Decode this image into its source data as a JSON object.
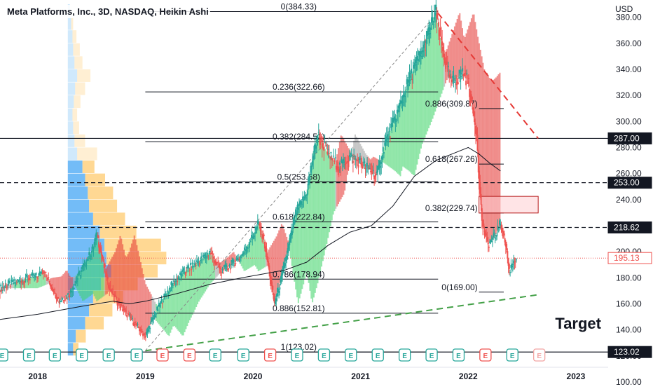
{
  "header": {
    "title": "Meta Platforms, Inc., 3D, NASDAQ, Heikin Ashi",
    "currency": "USD"
  },
  "annotations": {
    "target_label": "Target"
  },
  "colors": {
    "up": "#26a69a",
    "down": "#ef5350",
    "ribbon_up": "#3fd46a",
    "ribbon_down": "#e53935",
    "ribbon_neutral": "#9e9e9e",
    "ma_line": "#131722",
    "fib_line": "#131722",
    "red_dash": "#e53935",
    "green_dash": "#43a047",
    "vp_blue": "#64b5f6",
    "vp_orange": "#ffd180",
    "earnings_green": "#26a69a",
    "earnings_red": "#ef5350",
    "current_price": "#ef5350"
  },
  "chart_data": {
    "type": "candlestick",
    "title": "Meta Platforms, Inc., 3D, NASDAQ, Heikin Ashi",
    "y_axis": {
      "unit": "USD",
      "ylim": [
        100,
        390
      ],
      "ticks": [
        "100.00",
        "120.00",
        "140.00",
        "160.00",
        "180.00",
        "200.00",
        "220.00",
        "240.00",
        "260.00",
        "280.00",
        "300.00",
        "320.00",
        "340.00",
        "360.00",
        "380.00"
      ]
    },
    "x_axis": {
      "xlim": [
        2017.65,
        2023.3
      ],
      "ticks": [
        {
          "label": "2018",
          "x": 2018.0
        },
        {
          "label": "2019",
          "x": 2019.0
        },
        {
          "label": "2020",
          "x": 2020.0
        },
        {
          "label": "2021",
          "x": 2021.0
        },
        {
          "label": "2022",
          "x": 2022.0
        },
        {
          "label": "2023",
          "x": 2023.0
        }
      ]
    },
    "price_path": [
      [
        2017.65,
        172
      ],
      [
        2017.8,
        177
      ],
      [
        2017.92,
        180
      ],
      [
        2018.0,
        181
      ],
      [
        2018.05,
        186
      ],
      [
        2018.1,
        178
      ],
      [
        2018.2,
        162
      ],
      [
        2018.3,
        168
      ],
      [
        2018.4,
        185
      ],
      [
        2018.5,
        200
      ],
      [
        2018.55,
        213
      ],
      [
        2018.6,
        195
      ],
      [
        2018.65,
        176
      ],
      [
        2018.75,
        160
      ],
      [
        2018.85,
        150
      ],
      [
        2018.95,
        140
      ],
      [
        2019.0,
        135
      ],
      [
        2019.05,
        145
      ],
      [
        2019.15,
        162
      ],
      [
        2019.25,
        175
      ],
      [
        2019.35,
        184
      ],
      [
        2019.45,
        190
      ],
      [
        2019.55,
        196
      ],
      [
        2019.6,
        200
      ],
      [
        2019.7,
        185
      ],
      [
        2019.8,
        190
      ],
      [
        2019.9,
        198
      ],
      [
        2020.0,
        212
      ],
      [
        2020.05,
        222
      ],
      [
        2020.1,
        210
      ],
      [
        2020.15,
        185
      ],
      [
        2020.2,
        160
      ],
      [
        2020.25,
        175
      ],
      [
        2020.32,
        200
      ],
      [
        2020.4,
        230
      ],
      [
        2020.5,
        245
      ],
      [
        2020.55,
        270
      ],
      [
        2020.6,
        290
      ],
      [
        2020.7,
        275
      ],
      [
        2020.8,
        265
      ],
      [
        2020.9,
        273
      ],
      [
        2021.0,
        268
      ],
      [
        2021.1,
        262
      ],
      [
        2021.15,
        258
      ],
      [
        2021.22,
        282
      ],
      [
        2021.32,
        302
      ],
      [
        2021.42,
        325
      ],
      [
        2021.5,
        342
      ],
      [
        2021.58,
        355
      ],
      [
        2021.65,
        372
      ],
      [
        2021.7,
        384
      ],
      [
        2021.74,
        365
      ],
      [
        2021.8,
        340
      ],
      [
        2021.85,
        330
      ],
      [
        2021.9,
        333
      ],
      [
        2021.95,
        338
      ],
      [
        2022.0,
        330
      ],
      [
        2022.04,
        310
      ],
      [
        2022.08,
        290
      ],
      [
        2022.1,
        255
      ],
      [
        2022.13,
        222
      ],
      [
        2022.18,
        205
      ],
      [
        2022.25,
        212
      ],
      [
        2022.3,
        222
      ],
      [
        2022.35,
        205
      ],
      [
        2022.38,
        185
      ],
      [
        2022.42,
        193
      ],
      [
        2022.45,
        195
      ]
    ],
    "series": [
      {
        "type": "moving-average",
        "points": [
          [
            2017.65,
            148
          ],
          [
            2018.0,
            152
          ],
          [
            2018.4,
            158
          ],
          [
            2018.7,
            162
          ],
          [
            2018.85,
            160
          ],
          [
            2019.0,
            162
          ],
          [
            2019.3,
            168
          ],
          [
            2019.6,
            175
          ],
          [
            2019.9,
            180
          ],
          [
            2020.1,
            183
          ],
          [
            2020.3,
            186
          ],
          [
            2020.5,
            192
          ],
          [
            2020.7,
            205
          ],
          [
            2020.9,
            215
          ],
          [
            2021.1,
            220
          ],
          [
            2021.3,
            235
          ],
          [
            2021.5,
            258
          ],
          [
            2021.7,
            270
          ],
          [
            2021.85,
            275
          ],
          [
            2022.0,
            280
          ],
          [
            2022.1,
            275
          ],
          [
            2022.2,
            268
          ],
          [
            2022.3,
            262
          ]
        ]
      }
    ],
    "fibonacci_levels": [
      {
        "label": "0(384.33)",
        "value": 384.33
      },
      {
        "label": "0.236(322.66)",
        "value": 322.66
      },
      {
        "label": "0.382(284.51)",
        "value": 284.51
      },
      {
        "label": "0.5(253.68)",
        "value": 253.68
      },
      {
        "label": "0.618(222.84)",
        "value": 222.84
      },
      {
        "label": "0.786(178.94)",
        "value": 178.94
      },
      {
        "label": "0.886(152.81)",
        "value": 152.81
      },
      {
        "label": "1(123.02)",
        "value": 123.02
      }
    ],
    "retracement_levels": [
      {
        "label": "0.886(309.87)",
        "value": 309.87
      },
      {
        "label": "0.618(267.26)",
        "value": 267.26
      },
      {
        "label": "0.382(229.74)",
        "value": 229.74
      },
      {
        "label": "0(169.00)",
        "value": 169.0
      }
    ],
    "price_labels": [
      {
        "text": "287.00",
        "value": 287.0,
        "style": "dark"
      },
      {
        "text": "253.00",
        "value": 253.0,
        "style": "dark"
      },
      {
        "text": "218.62",
        "value": 218.62,
        "style": "dark"
      },
      {
        "text": "195.13",
        "value": 195.13,
        "style": "red"
      },
      {
        "text": "123.02",
        "value": 123.02,
        "style": "dark"
      }
    ],
    "horizontal_lines": [
      {
        "value": 287.0,
        "style": "solid"
      },
      {
        "value": 253.0,
        "style": "dashed"
      },
      {
        "value": 218.62,
        "style": "dashed"
      },
      {
        "value": 123.02,
        "style": "solid"
      }
    ],
    "current_price": 195.13,
    "trendlines": [
      {
        "name": "resistance",
        "color": "red",
        "style": "dashed",
        "from": [
          2021.72,
          383
        ],
        "to": [
          2022.65,
          287
        ]
      },
      {
        "name": "support",
        "color": "green",
        "style": "dashed",
        "from": [
          2019.0,
          124
        ],
        "to": [
          2022.65,
          167
        ]
      },
      {
        "name": "diagonal",
        "color": "gray",
        "style": "dashed",
        "from": [
          2019.0,
          124
        ],
        "to": [
          2021.72,
          384
        ]
      }
    ],
    "target_zone": {
      "x_start": 2022.1,
      "x_end": 2022.65,
      "y_low": 229.74,
      "y_high": 242.5
    },
    "earnings_markers": [
      {
        "x": 2017.67,
        "color": "green"
      },
      {
        "x": 2017.92,
        "color": "green"
      },
      {
        "x": 2018.16,
        "color": "green"
      },
      {
        "x": 2018.41,
        "color": "green"
      },
      {
        "x": 2018.66,
        "color": "green"
      },
      {
        "x": 2018.92,
        "color": "green"
      },
      {
        "x": 2019.16,
        "color": "red"
      },
      {
        "x": 2019.41,
        "color": "red"
      },
      {
        "x": 2019.65,
        "color": "green"
      },
      {
        "x": 2019.91,
        "color": "green"
      },
      {
        "x": 2020.16,
        "color": "red"
      },
      {
        "x": 2020.41,
        "color": "green"
      },
      {
        "x": 2020.66,
        "color": "green"
      },
      {
        "x": 2020.91,
        "color": "green"
      },
      {
        "x": 2021.16,
        "color": "green"
      },
      {
        "x": 2021.41,
        "color": "green"
      },
      {
        "x": 2021.66,
        "color": "green"
      },
      {
        "x": 2021.91,
        "color": "green"
      },
      {
        "x": 2022.16,
        "color": "red"
      },
      {
        "x": 2022.41,
        "color": "green"
      },
      {
        "x": 2022.66,
        "color": "faded-red"
      }
    ],
    "earnings_marker_label": "E",
    "volume_profile": [
      {
        "y0": 380,
        "y1": 390,
        "blue": 0.03,
        "orange": 0.0
      },
      {
        "y0": 370,
        "y1": 380,
        "blue": 0.05,
        "orange": 0.03
      },
      {
        "y0": 360,
        "y1": 370,
        "blue": 0.07,
        "orange": 0.06
      },
      {
        "y0": 350,
        "y1": 360,
        "blue": 0.08,
        "orange": 0.1
      },
      {
        "y0": 340,
        "y1": 350,
        "blue": 0.1,
        "orange": 0.12
      },
      {
        "y0": 330,
        "y1": 340,
        "blue": 0.14,
        "orange": 0.2
      },
      {
        "y0": 320,
        "y1": 330,
        "blue": 0.11,
        "orange": 0.15
      },
      {
        "y0": 310,
        "y1": 320,
        "blue": 0.09,
        "orange": 0.1
      },
      {
        "y0": 300,
        "y1": 310,
        "blue": 0.07,
        "orange": 0.07
      },
      {
        "y0": 290,
        "y1": 300,
        "blue": 0.08,
        "orange": 0.09
      },
      {
        "y0": 280,
        "y1": 290,
        "blue": 0.1,
        "orange": 0.16
      },
      {
        "y0": 270,
        "y1": 280,
        "blue": 0.14,
        "orange": 0.3
      },
      {
        "y0": 260,
        "y1": 270,
        "blue": 0.22,
        "orange": 0.18
      },
      {
        "y0": 250,
        "y1": 260,
        "blue": 0.26,
        "orange": 0.3
      },
      {
        "y0": 240,
        "y1": 250,
        "blue": 0.3,
        "orange": 0.38
      },
      {
        "y0": 230,
        "y1": 240,
        "blue": 0.32,
        "orange": 0.42
      },
      {
        "y0": 220,
        "y1": 230,
        "blue": 0.38,
        "orange": 0.48
      },
      {
        "y0": 210,
        "y1": 220,
        "blue": 0.48,
        "orange": 0.55
      },
      {
        "y0": 200,
        "y1": 210,
        "blue": 0.55,
        "orange": 0.85
      },
      {
        "y0": 190,
        "y1": 200,
        "blue": 0.58,
        "orange": 0.9
      },
      {
        "y0": 180,
        "y1": 190,
        "blue": 0.65,
        "orange": 0.7
      },
      {
        "y0": 170,
        "y1": 180,
        "blue": 0.5,
        "orange": 0.55
      },
      {
        "y0": 160,
        "y1": 170,
        "blue": 0.38,
        "orange": 0.45
      },
      {
        "y0": 150,
        "y1": 160,
        "blue": 0.32,
        "orange": 0.35
      },
      {
        "y0": 140,
        "y1": 150,
        "blue": 0.26,
        "orange": 0.28
      },
      {
        "y0": 130,
        "y1": 140,
        "blue": 0.12,
        "orange": 0.15
      },
      {
        "y0": 120,
        "y1": 130,
        "blue": 0.08,
        "orange": 0.08
      }
    ]
  }
}
